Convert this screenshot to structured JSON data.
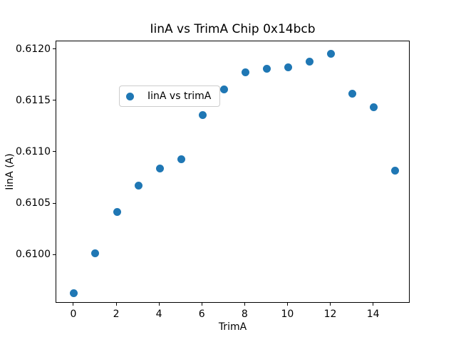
{
  "figure": {
    "background": "#ffffff",
    "accent_color": "#1f77b4"
  },
  "chart_data": {
    "type": "scatter",
    "title": "IinA vs TrimA Chip 0x14bcb",
    "xlabel": "TrimA",
    "ylabel": "IinA (A)",
    "grid": false,
    "legend_position": "upper left",
    "legend": {
      "label": "IinA vs trimA",
      "marker": "circle-icon",
      "marker_color": "#1f77b4"
    },
    "series": [
      {
        "name": "IinA vs trimA",
        "color": "#1f77b4",
        "x": [
          0,
          1,
          2,
          3,
          4,
          5,
          6,
          7,
          8,
          9,
          10,
          11,
          12,
          13,
          14,
          15
        ],
        "y": [
          0.60963,
          0.61002,
          0.61042,
          0.61068,
          0.61084,
          0.61093,
          0.61136,
          0.61161,
          0.61178,
          0.61181,
          0.61183,
          0.61188,
          0.61196,
          0.61157,
          0.61144,
          0.61082
        ]
      }
    ],
    "xlim": [
      -0.83,
      15.71
    ],
    "ylim": [
      0.60953,
      0.61208
    ],
    "xticks": {
      "values": [
        0,
        2,
        4,
        6,
        8,
        10,
        12,
        14
      ],
      "labels": [
        "0",
        "2",
        "4",
        "6",
        "8",
        "10",
        "12",
        "14"
      ]
    },
    "yticks": {
      "values": [
        0.61,
        0.6105,
        0.611,
        0.6115,
        0.612
      ],
      "labels": [
        "0.6100",
        "0.6105",
        "0.6110",
        "0.6115",
        "0.6120"
      ]
    }
  }
}
